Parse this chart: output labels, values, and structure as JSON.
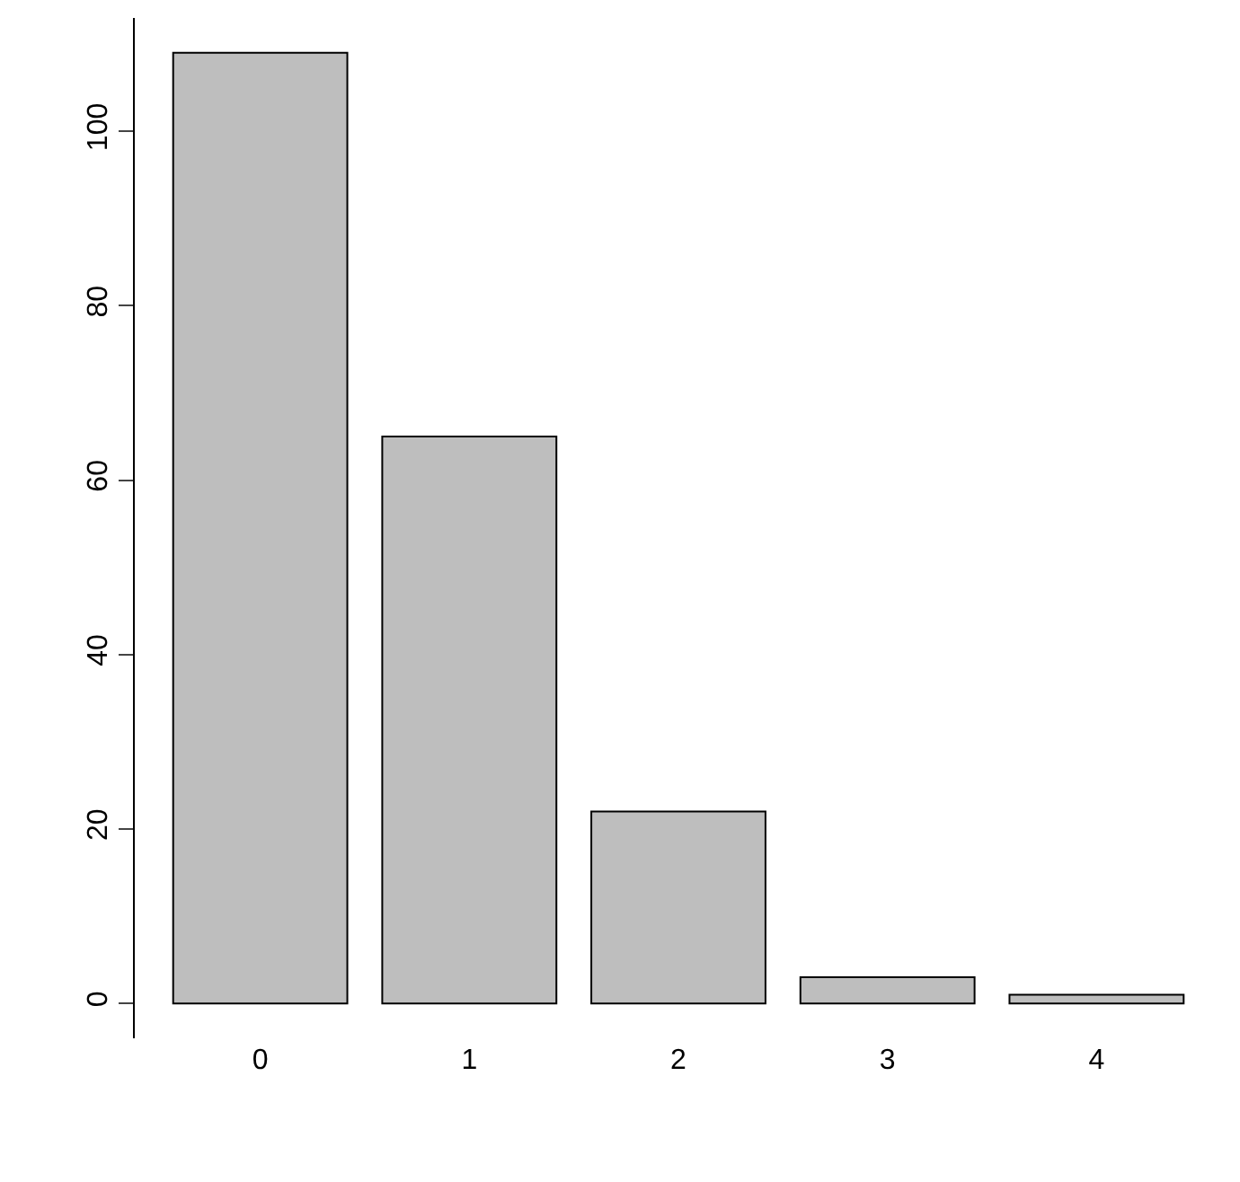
{
  "chart_data": {
    "type": "bar",
    "categories": [
      "0",
      "1",
      "2",
      "3",
      "4"
    ],
    "values": [
      109,
      65,
      22,
      3,
      1
    ],
    "color": "#bebebe",
    "ylim": [
      -4,
      113
    ],
    "yticks": [
      0,
      20,
      40,
      60,
      80,
      100
    ]
  }
}
